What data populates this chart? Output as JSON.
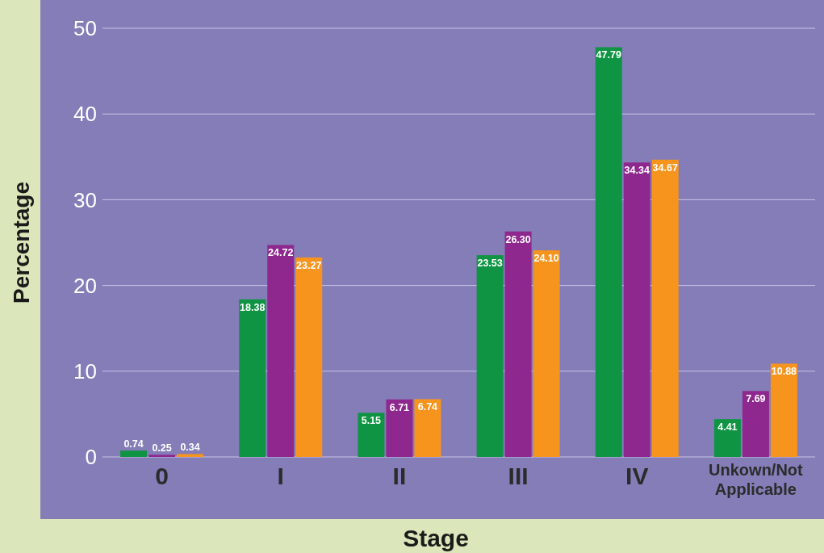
{
  "chart_data": {
    "type": "bar",
    "xlabel": "Stage",
    "ylabel": "Percentage",
    "categories": [
      "0",
      "I",
      "II",
      "III",
      "IV",
      "Unkown/Not Applicable"
    ],
    "series": [
      {
        "color": "#0f9444",
        "values": [
          0.74,
          18.38,
          5.15,
          23.53,
          47.79,
          4.41
        ]
      },
      {
        "color": "#8e288e",
        "values": [
          0.25,
          24.72,
          6.71,
          26.3,
          34.34,
          7.69
        ]
      },
      {
        "color": "#f7941d",
        "values": [
          0.34,
          23.27,
          6.74,
          24.1,
          34.67,
          10.88
        ]
      }
    ],
    "value_labels": [
      [
        "0.74",
        "18.38",
        "5.15",
        "23.53",
        "47.79",
        "4.41"
      ],
      [
        "0.25",
        "24.72",
        "6.71",
        "26.30",
        "34.34",
        "7.69"
      ],
      [
        "0.34",
        "23.27",
        "6.74",
        "24.10",
        "34.67",
        "10.88"
      ]
    ],
    "ylim": [
      0,
      50
    ],
    "yticks": [
      0,
      10,
      20,
      30,
      40,
      50
    ],
    "grid": "y"
  }
}
